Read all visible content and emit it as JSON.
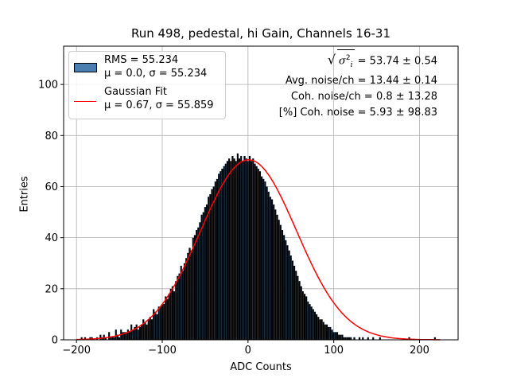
{
  "chart_data": {
    "type": "bar",
    "title": "Run 498, pedestal, hi Gain, Channels 16-31",
    "xlabel": "ADC Counts",
    "ylabel": "Entries",
    "xlim": [
      -215,
      245
    ],
    "ylim": [
      0,
      115
    ],
    "x_ticks": [
      -200,
      -100,
      0,
      100,
      200
    ],
    "y_ticks": [
      0,
      20,
      40,
      60,
      80,
      100
    ],
    "grid": true,
    "legend_placement": "top-left",
    "bar_color": "#000000",
    "fit_color": "#ff0000",
    "histogram": {
      "bin_width": 2,
      "x_start": -201,
      "values": [
        0,
        0,
        0,
        1,
        0,
        1,
        0,
        0,
        1,
        1,
        0,
        0,
        1,
        0,
        2,
        1,
        2,
        1,
        0,
        3,
        1,
        1,
        1,
        4,
        2,
        1,
        4,
        3,
        3,
        3,
        4,
        3,
        6,
        4,
        5,
        6,
        4,
        5,
        6,
        8,
        7,
        6,
        8,
        9,
        8,
        12,
        11,
        10,
        13,
        13,
        14,
        14,
        17,
        16,
        18,
        20,
        21,
        19,
        23,
        25,
        26,
        29,
        27,
        30,
        32,
        34,
        36,
        35,
        40,
        41,
        43,
        44,
        46,
        49,
        50,
        52,
        53,
        56,
        57,
        59,
        60,
        62,
        63,
        65,
        66,
        67,
        68,
        69,
        70,
        71,
        70,
        72,
        71,
        70,
        73,
        71,
        72,
        70,
        72,
        71,
        70,
        72,
        70,
        71,
        69,
        68,
        67,
        66,
        64,
        63,
        62,
        60,
        58,
        56,
        55,
        53,
        51,
        49,
        47,
        45,
        43,
        41,
        39,
        37,
        35,
        33,
        31,
        29,
        27,
        25,
        23,
        21,
        19,
        18,
        17,
        15,
        14,
        13,
        12,
        11,
        10,
        9,
        8,
        8,
        7,
        6,
        6,
        5,
        5,
        4,
        3,
        3,
        3,
        2,
        2,
        2,
        1,
        1,
        1,
        1,
        1,
        0,
        1,
        0,
        0,
        1,
        0,
        1,
        0,
        0,
        1,
        0,
        0,
        1,
        0,
        0,
        0,
        1,
        0,
        0,
        0,
        0,
        0,
        0,
        0,
        0,
        0,
        0,
        0,
        0,
        0,
        0,
        0,
        0,
        1,
        0,
        0,
        0,
        0,
        0,
        0,
        0,
        0,
        0,
        0,
        0,
        0,
        0,
        0,
        1,
        0
      ]
    },
    "series": [
      {
        "name": "RMS = 55.234",
        "kind": "histogram",
        "mu_label": "μ = 0.0, σ = 55.234"
      },
      {
        "name": "Gaussian Fit",
        "kind": "line",
        "mu": 0.67,
        "sigma": 55.859,
        "amplitude": 70.5,
        "mu_label": "μ = 0.67, σ = 55.859"
      }
    ],
    "annotations": {
      "sigma_label": "= 53.74 ± 0.54",
      "avg_noise": "Avg. noise/ch = 13.44 ± 0.14",
      "coh_noise": "Coh. noise/ch = 0.8 ± 13.28",
      "coh_noise_pct": "[%] Coh. noise = 5.93 ± 98.83"
    }
  }
}
